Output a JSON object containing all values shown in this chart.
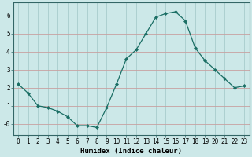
{
  "x": [
    0,
    1,
    2,
    3,
    4,
    5,
    6,
    7,
    8,
    9,
    10,
    11,
    12,
    13,
    14,
    15,
    16,
    17,
    18,
    19,
    20,
    21,
    22,
    23
  ],
  "y": [
    2.2,
    1.7,
    1.0,
    0.9,
    0.7,
    0.4,
    -0.1,
    -0.1,
    -0.2,
    0.9,
    2.2,
    3.6,
    4.1,
    5.0,
    5.9,
    6.1,
    6.2,
    5.7,
    4.2,
    3.5,
    3.0,
    2.5,
    2.0,
    2.1
  ],
  "line_color": "#1a6e64",
  "marker": "D",
  "marker_size": 2.0,
  "bg_color": "#cce8e8",
  "grid_color_h": "#c8a0a0",
  "grid_color_v": "#a8cccc",
  "xlabel": "Humidex (Indice chaleur)",
  "ylim": [
    -0.6,
    6.7
  ],
  "xlim": [
    -0.5,
    23.5
  ],
  "yticks": [
    0,
    1,
    2,
    3,
    4,
    5,
    6
  ],
  "ytick_labels": [
    "-0",
    "1",
    "2",
    "3",
    "4",
    "5",
    "6"
  ],
  "xticks": [
    0,
    1,
    2,
    3,
    4,
    5,
    6,
    7,
    8,
    9,
    10,
    11,
    12,
    13,
    14,
    15,
    16,
    17,
    18,
    19,
    20,
    21,
    22,
    23
  ],
  "label_fontsize": 6.5,
  "tick_fontsize": 5.5
}
